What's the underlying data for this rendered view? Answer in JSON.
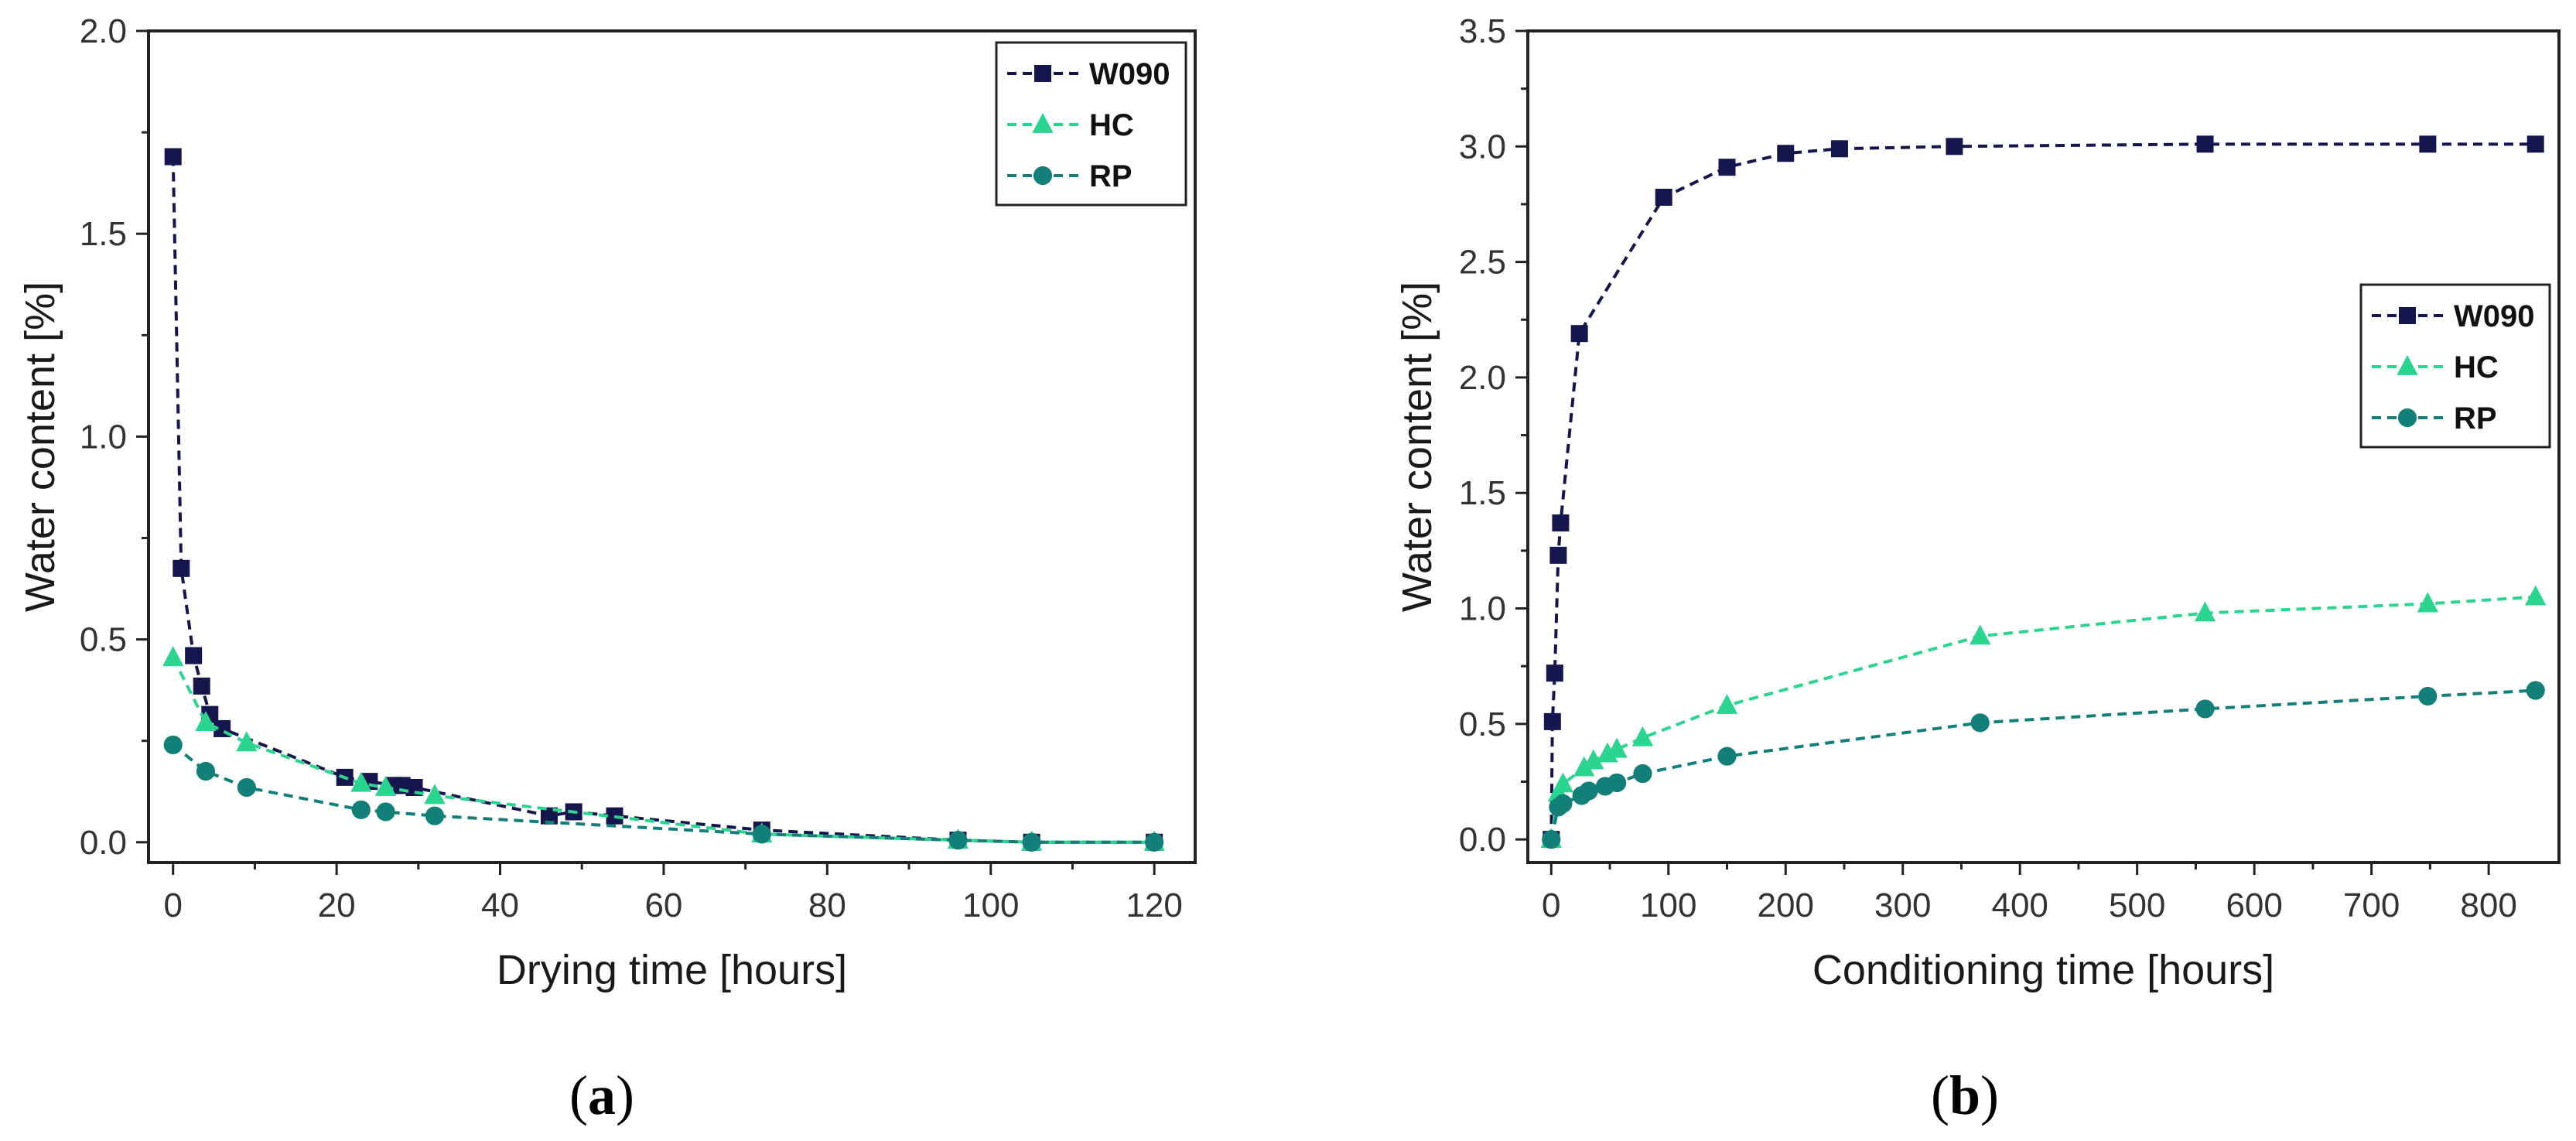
{
  "chart_data": [
    {
      "type": "line",
      "panel_label": "a",
      "xlabel": "Drying time [hours]",
      "ylabel": "Water content [%]",
      "xlim": [
        -3,
        125
      ],
      "ylim": [
        -0.05,
        2.0
      ],
      "xticks": [
        0,
        20,
        40,
        60,
        80,
        100,
        120
      ],
      "yticks": [
        0.0,
        0.5,
        1.0,
        1.5,
        2.0
      ],
      "xtick_labels": [
        "0",
        "20",
        "40",
        "60",
        "80",
        "100",
        "120"
      ],
      "ytick_labels": [
        "0.0",
        "0.5",
        "1.0",
        "1.5",
        "2.0"
      ],
      "legend_position": "top-right",
      "series": [
        {
          "name": "W090",
          "color": "#16164f",
          "marker": "square",
          "x": [
            0,
            1,
            2.5,
            3.5,
            4.5,
            6,
            21,
            24,
            27,
            28,
            29.5,
            46,
            49,
            54,
            72,
            96,
            105,
            120
          ],
          "y": [
            1.69,
            0.675,
            0.46,
            0.385,
            0.315,
            0.28,
            0.16,
            0.15,
            0.14,
            0.14,
            0.135,
            0.065,
            0.075,
            0.065,
            0.03,
            0.005,
            0.0,
            0.0
          ]
        },
        {
          "name": "HC",
          "color": "#2ad68f",
          "marker": "triangle",
          "x": [
            0,
            4,
            9,
            23,
            26,
            32,
            72,
            96,
            105,
            120
          ],
          "y": [
            0.455,
            0.295,
            0.245,
            0.145,
            0.135,
            0.115,
            0.02,
            0.005,
            0.0,
            0.0
          ]
        },
        {
          "name": "RP",
          "color": "#137f79",
          "marker": "circle",
          "x": [
            0,
            4,
            9,
            23,
            26,
            32,
            72,
            96,
            105,
            120
          ],
          "y": [
            0.24,
            0.175,
            0.135,
            0.08,
            0.075,
            0.065,
            0.02,
            0.005,
            0.0,
            0.0
          ]
        }
      ]
    },
    {
      "type": "line",
      "panel_label": "b",
      "xlabel": "Conditioning time [hours]",
      "ylabel": "Water content [%]",
      "xlim": [
        -20,
        860
      ],
      "ylim": [
        -0.1,
        3.5
      ],
      "xticks": [
        0,
        100,
        200,
        300,
        400,
        500,
        600,
        700,
        800
      ],
      "yticks": [
        0.0,
        0.5,
        1.0,
        1.5,
        2.0,
        2.5,
        3.0,
        3.5
      ],
      "xtick_labels": [
        "0",
        "100",
        "200",
        "300",
        "400",
        "500",
        "600",
        "700",
        "800"
      ],
      "ytick_labels": [
        "0.0",
        "0.5",
        "1.0",
        "1.5",
        "2.0",
        "2.5",
        "3.0",
        "3.5"
      ],
      "legend_position": "center-right",
      "series": [
        {
          "name": "W090",
          "color": "#16164f",
          "marker": "square",
          "x": [
            0,
            1,
            3,
            6,
            8,
            24,
            96,
            150,
            200,
            246,
            344,
            558,
            748,
            840
          ],
          "y": [
            0.0,
            0.51,
            0.72,
            1.23,
            1.37,
            2.19,
            2.78,
            2.91,
            2.97,
            2.99,
            3.0,
            3.01,
            3.01,
            3.01
          ],
          "start_x": 0,
          "start_y": 0
        },
        {
          "name": "HC",
          "color": "#2ad68f",
          "marker": "triangle",
          "x": [
            0,
            6,
            10,
            28,
            36,
            48,
            56,
            78,
            150,
            366,
            558,
            748,
            840
          ],
          "y": [
            0.0,
            0.2,
            0.24,
            0.31,
            0.34,
            0.37,
            0.39,
            0.44,
            0.58,
            0.88,
            0.98,
            1.02,
            1.05
          ]
        },
        {
          "name": "RP",
          "color": "#137f79",
          "marker": "circle",
          "x": [
            0,
            6,
            10,
            26,
            32,
            46,
            56,
            78,
            150,
            366,
            558,
            748,
            840
          ],
          "y": [
            0.0,
            0.14,
            0.155,
            0.19,
            0.21,
            0.23,
            0.245,
            0.285,
            0.36,
            0.505,
            0.565,
            0.62,
            0.645
          ]
        }
      ]
    }
  ]
}
